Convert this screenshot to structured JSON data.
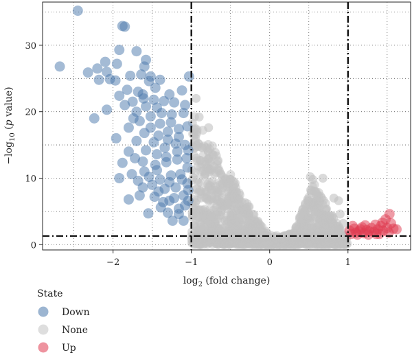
{
  "chart_data": {
    "type": "scatter",
    "title": "",
    "xlabel_prefix": "log",
    "xlabel_sub": "2",
    "xlabel_suffix": " (fold change)",
    "ylabel_prefix": "−log",
    "ylabel_sub": "10",
    "ylabel_open": " (",
    "ylabel_p": "p",
    "ylabel_suffix": " value)",
    "xlim": [
      -2.9,
      1.8
    ],
    "ylim": [
      -0.8,
      36.5
    ],
    "xticks": [
      -2,
      -1,
      0,
      1
    ],
    "xtick_labels": [
      "−2",
      "−1",
      "0",
      "1"
    ],
    "yticks": [
      0,
      10,
      20,
      30
    ],
    "ytick_labels": [
      "0",
      "10",
      "20",
      "30"
    ],
    "thresholds": {
      "x": [
        -1,
        1
      ],
      "y": 1.3
    },
    "grid": true,
    "legend": {
      "title": "State",
      "placement": "bottom-left",
      "items": [
        {
          "label": "Down",
          "color": "#4a78ab"
        },
        {
          "label": "None",
          "color": "#c2c2c2"
        },
        {
          "label": "Up",
          "color": "#e03a50"
        }
      ]
    },
    "series": [
      {
        "key": "Down",
        "color": "#4a78ab",
        "points": [
          [
            -2.45,
            35.2
          ],
          [
            -1.88,
            32.9
          ],
          [
            -1.85,
            32.8
          ],
          [
            -2.68,
            26.8
          ],
          [
            -2.32,
            25.9
          ],
          [
            -2.1,
            27.5
          ],
          [
            -2.2,
            26.5
          ],
          [
            -2.08,
            26.0
          ],
          [
            -1.95,
            27.2
          ],
          [
            -1.92,
            29.3
          ],
          [
            -1.7,
            29.1
          ],
          [
            -1.58,
            27.8
          ],
          [
            -1.6,
            26.8
          ],
          [
            -1.64,
            25.6
          ],
          [
            -1.78,
            25.4
          ],
          [
            -1.52,
            25.3
          ],
          [
            -2.18,
            24.8
          ],
          [
            -2.04,
            24.9
          ],
          [
            -1.97,
            24.7
          ],
          [
            -1.82,
            23.3
          ],
          [
            -1.68,
            23.0
          ],
          [
            -1.54,
            24.6
          ],
          [
            -1.4,
            24.8
          ],
          [
            -1.92,
            22.4
          ],
          [
            -1.75,
            21.5
          ],
          [
            -1.61,
            22.0
          ],
          [
            -1.48,
            21.8
          ],
          [
            -1.35,
            21.6
          ],
          [
            -1.22,
            21.4
          ],
          [
            -1.08,
            21.0
          ],
          [
            -1.85,
            21.0
          ],
          [
            -2.08,
            20.3
          ],
          [
            -2.24,
            19.0
          ],
          [
            -1.96,
            16.0
          ],
          [
            -1.8,
            17.6
          ],
          [
            -1.66,
            18.6
          ],
          [
            -1.52,
            19.3
          ],
          [
            -1.38,
            19.8
          ],
          [
            -1.25,
            19.6
          ],
          [
            -1.1,
            19.8
          ],
          [
            -1.03,
            25.3
          ],
          [
            -1.8,
            14.0
          ],
          [
            -1.72,
            13.0
          ],
          [
            -1.88,
            12.3
          ],
          [
            -1.62,
            12.5
          ],
          [
            -1.92,
            10.0
          ],
          [
            -1.76,
            10.6
          ],
          [
            -1.6,
            11.0
          ],
          [
            -1.46,
            12.0
          ],
          [
            -1.32,
            12.4
          ],
          [
            -1.18,
            12.8
          ],
          [
            -1.06,
            13.0
          ],
          [
            -1.8,
            6.8
          ],
          [
            -1.66,
            7.4
          ],
          [
            -1.55,
            4.7
          ],
          [
            -1.47,
            7.2
          ],
          [
            -1.39,
            5.6
          ],
          [
            -1.28,
            6.6
          ],
          [
            -1.16,
            4.6
          ],
          [
            -1.08,
            5.9
          ],
          [
            -1.24,
            3.6
          ],
          [
            -1.1,
            3.6
          ],
          [
            -1.42,
            16.4
          ],
          [
            -1.3,
            17.0
          ],
          [
            -1.16,
            17.4
          ],
          [
            -1.05,
            17.8
          ],
          [
            -1.2,
            15.2
          ],
          [
            -1.08,
            15.0
          ],
          [
            -1.34,
            14.6
          ],
          [
            -1.48,
            15.4
          ],
          [
            -1.6,
            16.8
          ],
          [
            -1.14,
            10.6
          ],
          [
            -1.26,
            10.4
          ],
          [
            -1.4,
            9.8
          ],
          [
            -1.05,
            9.2
          ],
          [
            -1.2,
            8.6
          ],
          [
            -1.34,
            8.4
          ],
          [
            -1.5,
            9.0
          ],
          [
            -1.62,
            8.6
          ],
          [
            -1.1,
            7.4
          ],
          [
            -1.22,
            7.0
          ],
          [
            -1.36,
            6.4
          ],
          [
            -1.05,
            11.6
          ],
          [
            -1.44,
            11.2
          ],
          [
            -1.28,
            22.6
          ],
          [
            -1.44,
            20.6
          ],
          [
            -1.58,
            20.8
          ],
          [
            -1.7,
            20.0
          ],
          [
            -1.74,
            19.0
          ],
          [
            -1.12,
            23.2
          ],
          [
            -1.26,
            18.4
          ],
          [
            -1.4,
            18.2
          ],
          [
            -1.52,
            17.6
          ],
          [
            -1.16,
            16.2
          ],
          [
            -1.3,
            15.8
          ],
          [
            -1.44,
            13.6
          ],
          [
            -1.58,
            14.2
          ],
          [
            -1.7,
            15.6
          ],
          [
            -1.04,
            14.2
          ],
          [
            -1.18,
            14.0
          ],
          [
            -1.32,
            13.2
          ],
          [
            -1.68,
            9.6
          ],
          [
            -1.54,
            10.2
          ],
          [
            -1.12,
            9.8
          ],
          [
            -1.28,
            9.4
          ],
          [
            -1.42,
            8.0
          ],
          [
            -1.04,
            8.2
          ],
          [
            -1.16,
            5.4
          ],
          [
            -1.3,
            4.8
          ],
          [
            -1.04,
            6.6
          ],
          [
            -1.46,
            23.6
          ],
          [
            -1.62,
            22.6
          ]
        ]
      },
      {
        "key": "Up",
        "color": "#e03a50",
        "points": [
          [
            1.02,
            2.1
          ],
          [
            1.04,
            1.6
          ],
          [
            1.08,
            2.4
          ],
          [
            1.1,
            1.8
          ],
          [
            1.14,
            2.0
          ],
          [
            1.18,
            2.6
          ],
          [
            1.2,
            1.7
          ],
          [
            1.24,
            2.2
          ],
          [
            1.27,
            2.0
          ],
          [
            1.3,
            2.5
          ],
          [
            1.33,
            1.9
          ],
          [
            1.35,
            3.0
          ],
          [
            1.38,
            2.3
          ],
          [
            1.42,
            2.8
          ],
          [
            1.45,
            2.1
          ],
          [
            1.48,
            3.8
          ],
          [
            1.5,
            2.5
          ],
          [
            1.53,
            4.6
          ],
          [
            1.55,
            3.2
          ],
          [
            1.58,
            2.4
          ],
          [
            1.62,
            2.3
          ],
          [
            1.12,
            1.5
          ],
          [
            1.26,
            1.5
          ],
          [
            1.4,
            1.6
          ],
          [
            1.22,
            2.9
          ],
          [
            1.44,
            3.3
          ],
          [
            1.06,
            2.8
          ],
          [
            1.16,
            2.3
          ],
          [
            1.36,
            1.6
          ],
          [
            1.52,
            1.8
          ]
        ]
      }
    ]
  }
}
